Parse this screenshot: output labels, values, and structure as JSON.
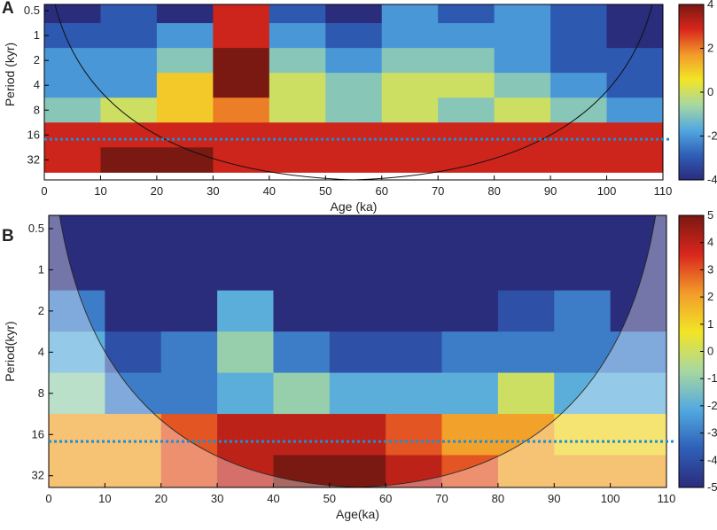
{
  "chart_data": [
    {
      "type": "heatmap",
      "panel": "A",
      "xlabel": "Age (ka)",
      "ylabel": "Period (kyr)",
      "xlim": [
        0,
        110
      ],
      "xticks": [
        0,
        10,
        20,
        30,
        40,
        50,
        60,
        70,
        80,
        90,
        100,
        110
      ],
      "ylim": [
        0.42,
        56
      ],
      "yticks": [
        0.5,
        1,
        2,
        4,
        8,
        16,
        32
      ],
      "log_y": true,
      "x": [
        5,
        15,
        25,
        35,
        45,
        55,
        65,
        75,
        85,
        95,
        105
      ],
      "y": [
        0.5,
        1,
        2,
        4,
        8,
        16,
        32
      ],
      "values": [
        [
          -4,
          -3,
          -4,
          3,
          -3,
          -4,
          -2,
          -3,
          -2,
          -3,
          -4
        ],
        [
          -3,
          -3,
          -2,
          3,
          -2,
          -3,
          -2,
          -2,
          -2,
          -3,
          -4
        ],
        [
          -2,
          -2,
          -1,
          4,
          -1,
          -2,
          -1,
          -1,
          -2,
          -3,
          -3
        ],
        [
          -2,
          -2,
          1,
          4,
          0,
          -1,
          0,
          0,
          -1,
          -2,
          -3
        ],
        [
          -1,
          0,
          1,
          2,
          0,
          -1,
          0,
          -1,
          0,
          -1,
          -2
        ],
        [
          3,
          3,
          3,
          3,
          3,
          3,
          3,
          3,
          3,
          3,
          3
        ],
        [
          3,
          4,
          4,
          3,
          3,
          3,
          3,
          3,
          3,
          3,
          3
        ]
      ],
      "zlim": [
        -4,
        4
      ],
      "zticks": [
        4,
        2,
        0,
        -2,
        -4
      ],
      "hline": 18
    },
    {
      "type": "heatmap",
      "panel": "B",
      "xlabel": "Age(ka)",
      "ylabel": "Period(kyr)",
      "xlim": [
        0,
        110
      ],
      "xticks": [
        0,
        10,
        20,
        30,
        40,
        50,
        60,
        70,
        80,
        90,
        100,
        110
      ],
      "ylim": [
        0.4,
        39
      ],
      "yticks": [
        0.5,
        1,
        2,
        4,
        8,
        16,
        32
      ],
      "log_y": true,
      "x": [
        5,
        15,
        25,
        35,
        45,
        55,
        65,
        75,
        85,
        95,
        105
      ],
      "y": [
        0.5,
        1,
        2,
        4,
        8,
        16,
        32
      ],
      "values": [
        [
          -5,
          -5,
          -5,
          -5,
          -5,
          -5,
          -5,
          -5,
          -5,
          -5,
          -5
        ],
        [
          -5,
          -5,
          -5,
          -5,
          -5,
          -5,
          -5,
          -5,
          -5,
          -5,
          -5
        ],
        [
          -3,
          -5,
          -5,
          -2,
          -5,
          -5,
          -5,
          -5,
          -4,
          -3,
          -5
        ],
        [
          -2,
          -4,
          -3,
          -1,
          -3,
          -4,
          -4,
          -3,
          -3,
          -3,
          -3
        ],
        [
          -1,
          -3,
          -3,
          -2,
          -1,
          -2,
          -2,
          -2,
          0,
          -2,
          -2
        ],
        [
          2,
          2,
          3,
          4,
          4,
          4,
          3,
          2,
          2,
          1,
          1
        ],
        [
          2,
          2,
          3,
          4,
          5,
          5,
          4,
          3,
          2,
          2,
          2
        ]
      ],
      "zlim": [
        -5,
        5
      ],
      "zticks": [
        5,
        4,
        3,
        2,
        1,
        0,
        -1,
        -2,
        -3,
        -4,
        -5
      ],
      "hline": 18
    }
  ],
  "colors": [
    "#2a2c7c",
    "#2f5fb8",
    "#52a9e0",
    "#a8d8a0",
    "#f2e526",
    "#f29b2a",
    "#d9261c",
    "#7a1812"
  ],
  "hline_color": "#1a8fd6"
}
